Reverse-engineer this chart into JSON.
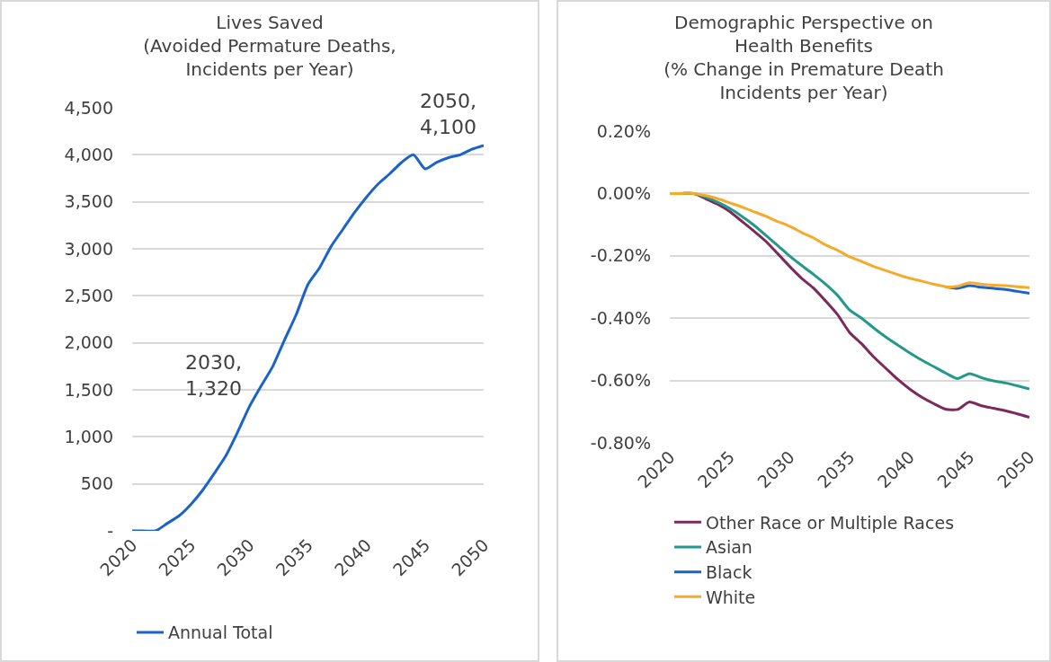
{
  "chart_data": [
    {
      "type": "line",
      "title": "Lives Saved\n(Avoided Permature Deaths,\nIncidents per Year)",
      "x": [
        2020,
        2021,
        2022,
        2023,
        2024,
        2025,
        2026,
        2027,
        2028,
        2029,
        2030,
        2031,
        2032,
        2033,
        2034,
        2035,
        2036,
        2037,
        2038,
        2039,
        2040,
        2041,
        2042,
        2043,
        2044,
        2045,
        2046,
        2047,
        2048,
        2049,
        2050
      ],
      "series": [
        {
          "name": "Annual Total",
          "color": "#1a63c8",
          "values": [
            0,
            0,
            0,
            80,
            160,
            280,
            430,
            610,
            800,
            1050,
            1320,
            1540,
            1750,
            2030,
            2300,
            2620,
            2800,
            3030,
            3210,
            3390,
            3550,
            3690,
            3800,
            3920,
            4000,
            3850,
            3920,
            3970,
            4000,
            4060,
            4100
          ]
        }
      ],
      "xlim": [
        2020,
        2050
      ],
      "xticks": [
        2020,
        2025,
        2030,
        2035,
        2040,
        2045,
        2050
      ],
      "ylim": [
        0,
        4500
      ],
      "yticks": [
        {
          "value": 0,
          "label": "-"
        },
        {
          "value": 500,
          "label": "500"
        },
        {
          "value": 1000,
          "label": "1,000"
        },
        {
          "value": 1500,
          "label": "1,500"
        },
        {
          "value": 2000,
          "label": "2,000"
        },
        {
          "value": 2500,
          "label": "2,500"
        },
        {
          "value": 3000,
          "label": "3,000"
        },
        {
          "value": 3500,
          "label": "3,500"
        },
        {
          "value": 4000,
          "label": "4,000"
        },
        {
          "value": 4500,
          "label": "4,500"
        }
      ],
      "grid": "y",
      "legend": "bottom",
      "annotations": [
        {
          "text": "2030,\n1,320",
          "x": 2030,
          "y": 1320
        },
        {
          "text": "2050,\n4,100",
          "x": 2050,
          "y": 4100
        }
      ]
    },
    {
      "type": "line",
      "title": "Demographic Perspective on\nHealth Benefits\n(% Change in Premature Death\nIncidents per Year)",
      "x": [
        2020,
        2021,
        2022,
        2023,
        2024,
        2025,
        2026,
        2027,
        2028,
        2029,
        2030,
        2031,
        2032,
        2033,
        2034,
        2035,
        2036,
        2037,
        2038,
        2039,
        2040,
        2041,
        2042,
        2043,
        2044,
        2045,
        2046,
        2047,
        2048,
        2049,
        2050
      ],
      "series": [
        {
          "name": "Other Race or Multiple Races",
          "color": "#7b2a5a",
          "values": [
            0,
            0,
            0,
            -0.017,
            -0.035,
            -0.058,
            -0.089,
            -0.12,
            -0.153,
            -0.193,
            -0.234,
            -0.272,
            -0.304,
            -0.345,
            -0.389,
            -0.446,
            -0.482,
            -0.524,
            -0.56,
            -0.596,
            -0.627,
            -0.653,
            -0.674,
            -0.692,
            -0.693,
            -0.669,
            -0.681,
            -0.689,
            -0.697,
            -0.707,
            -0.718
          ]
        },
        {
          "name": "Asian",
          "color": "#22998a",
          "values": [
            0,
            0,
            0,
            -0.012,
            -0.028,
            -0.048,
            -0.073,
            -0.101,
            -0.134,
            -0.167,
            -0.201,
            -0.231,
            -0.26,
            -0.291,
            -0.327,
            -0.374,
            -0.4,
            -0.431,
            -0.46,
            -0.486,
            -0.511,
            -0.534,
            -0.555,
            -0.576,
            -0.594,
            -0.578,
            -0.591,
            -0.601,
            -0.608,
            -0.617,
            -0.627
          ]
        },
        {
          "name": "Black",
          "color": "#1a63c8",
          "values": [
            null,
            null,
            null,
            null,
            null,
            null,
            null,
            null,
            null,
            null,
            null,
            null,
            null,
            null,
            null,
            null,
            null,
            null,
            null,
            null,
            null,
            null,
            null,
            -0.299,
            -0.304,
            -0.296,
            -0.301,
            -0.304,
            -0.308,
            -0.314,
            -0.32
          ]
        },
        {
          "name": "White",
          "color": "#f5aa2a",
          "values": [
            0,
            0,
            0,
            -0.007,
            -0.017,
            -0.03,
            -0.043,
            -0.058,
            -0.073,
            -0.09,
            -0.105,
            -0.125,
            -0.143,
            -0.165,
            -0.182,
            -0.203,
            -0.218,
            -0.234,
            -0.247,
            -0.26,
            -0.272,
            -0.281,
            -0.291,
            -0.299,
            -0.298,
            -0.286,
            -0.291,
            -0.294,
            -0.296,
            -0.299,
            -0.302
          ]
        }
      ],
      "xlim": [
        2020,
        2050
      ],
      "xticks": [
        2020,
        2025,
        2030,
        2035,
        2040,
        2045,
        2050
      ],
      "ylim": [
        -0.8,
        0.2
      ],
      "yticks": [
        {
          "value": -0.8,
          "label": "-0.80%"
        },
        {
          "value": -0.6,
          "label": "-0.60%"
        },
        {
          "value": -0.4,
          "label": "-0.40%"
        },
        {
          "value": -0.2,
          "label": "-0.20%"
        },
        {
          "value": 0,
          "label": "0.00%"
        },
        {
          "value": 0.2,
          "label": "0.20%"
        }
      ],
      "grid": "y",
      "legend": "bottom"
    }
  ]
}
